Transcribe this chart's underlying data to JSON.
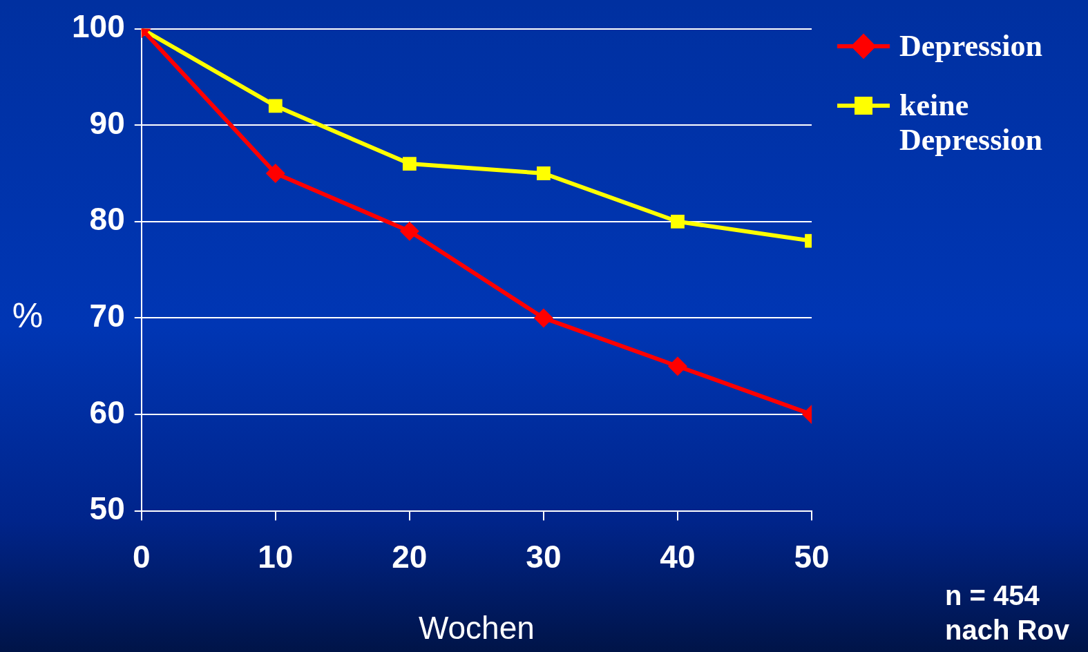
{
  "chart_data": {
    "type": "line",
    "xlabel": "Wochen",
    "ylabel": "%",
    "x": [
      0,
      10,
      20,
      30,
      40,
      50
    ],
    "series": [
      {
        "name": "Depression",
        "color": "#ff0000",
        "marker": "diamond",
        "values": [
          100,
          85,
          79,
          70,
          65,
          60
        ]
      },
      {
        "name": "keine Depression",
        "color": "#ffff00",
        "marker": "square",
        "values": [
          100,
          92,
          86,
          85,
          80,
          78
        ]
      }
    ],
    "xlim": [
      0,
      50
    ],
    "xticks": [
      0,
      10,
      20,
      30,
      40,
      50
    ],
    "ylim": [
      50,
      100
    ],
    "yticks": [
      50,
      60,
      70,
      80,
      90,
      100
    ],
    "grid": "y",
    "legend": "top right",
    "line_style": "solid",
    "annotations": [
      "n = 454",
      "nach Rov"
    ]
  }
}
